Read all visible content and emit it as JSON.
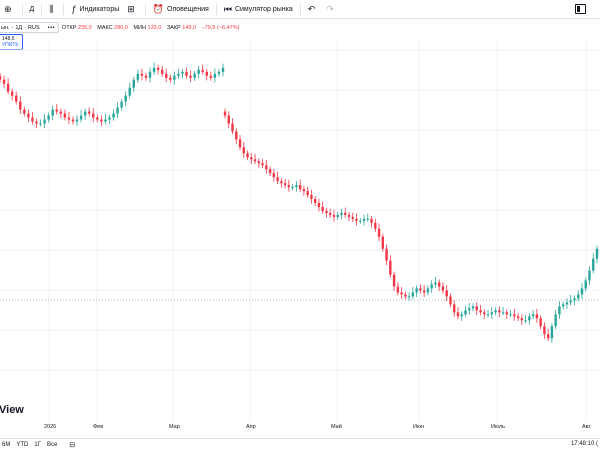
{
  "toolbar": {
    "interval_label": "Д",
    "indicators_label": "Индикаторы",
    "alerts_label": "Оповещения",
    "replay_label": "Симулятор рынка"
  },
  "legend": {
    "symbol_fragment": "ын.",
    "interval": "1Д",
    "exchange": "RUS",
    "more": "•••",
    "ohlc": [
      {
        "key": "ОТКР",
        "value": "235,0"
      },
      {
        "key": "МАКС",
        "value": "280,0"
      },
      {
        "key": "МИН",
        "value": "133,0"
      },
      {
        "key": "ЗАКР",
        "value": "149,0"
      }
    ],
    "change": "−79,5 (−6,47%)",
    "price_tag_value": "148,5",
    "price_tag_sub": "УПИТЬ"
  },
  "logo_text": "View",
  "time_axis": {
    "labels": [
      "2026",
      "Фев",
      "Мар",
      "Апр",
      "Май",
      "Июн",
      "Июль",
      "Авг"
    ]
  },
  "bottom_bar": {
    "ranges": [
      "6М",
      "YTD",
      "1Г",
      "Все"
    ],
    "clock": "17:48:10 (",
    "calendar_icon": "calendar-icon"
  },
  "colors": {
    "up": "#26a69a",
    "down": "#f23645",
    "accent": "#2962ff",
    "grid": "#f0f3fa"
  },
  "chart_data": {
    "type": "candlestick",
    "x_labels": [
      "2026",
      "Фев",
      "Мар",
      "Апр",
      "Май",
      "Июн",
      "Июль",
      "Авг"
    ],
    "series": [
      {
        "segment": "jan-mar",
        "closes": [
          248,
          246,
          242,
          240,
          237,
          233,
          231,
          229,
          227,
          226,
          226,
          228,
          230,
          233,
          232,
          231,
          229,
          228,
          227,
          228,
          230,
          232,
          231,
          229,
          228,
          227,
          228,
          229,
          231,
          234,
          237,
          240,
          244,
          248,
          251,
          250,
          249,
          252,
          254,
          253,
          251,
          249,
          248,
          250,
          251,
          252,
          250,
          249,
          251,
          253,
          252,
          250,
          249,
          251,
          252,
          254
        ]
      },
      {
        "segment": "mar-aug",
        "closes": [
          230,
          226,
          222,
          218,
          214,
          211,
          209,
          208,
          207,
          206,
          205,
          203,
          201,
          199,
          197,
          196,
          195,
          194,
          194,
          195,
          193,
          192,
          190,
          188,
          186,
          184,
          182,
          181,
          180,
          179,
          180,
          181,
          180,
          179,
          178,
          177,
          177,
          178,
          178,
          176,
          173,
          169,
          163,
          157,
          150,
          144,
          141,
          140,
          139,
          139,
          141,
          143,
          142,
          141,
          143,
          145,
          146,
          144,
          142,
          139,
          135,
          131,
          129,
          130,
          132,
          133,
          134,
          132,
          131,
          130,
          130,
          131,
          132,
          131,
          131,
          130,
          130,
          129,
          128,
          127,
          127,
          129,
          130,
          128,
          124,
          120,
          118,
          124,
          130,
          134,
          135,
          136,
          137,
          138,
          140,
          143,
          147,
          152,
          158,
          163
        ]
      }
    ]
  }
}
